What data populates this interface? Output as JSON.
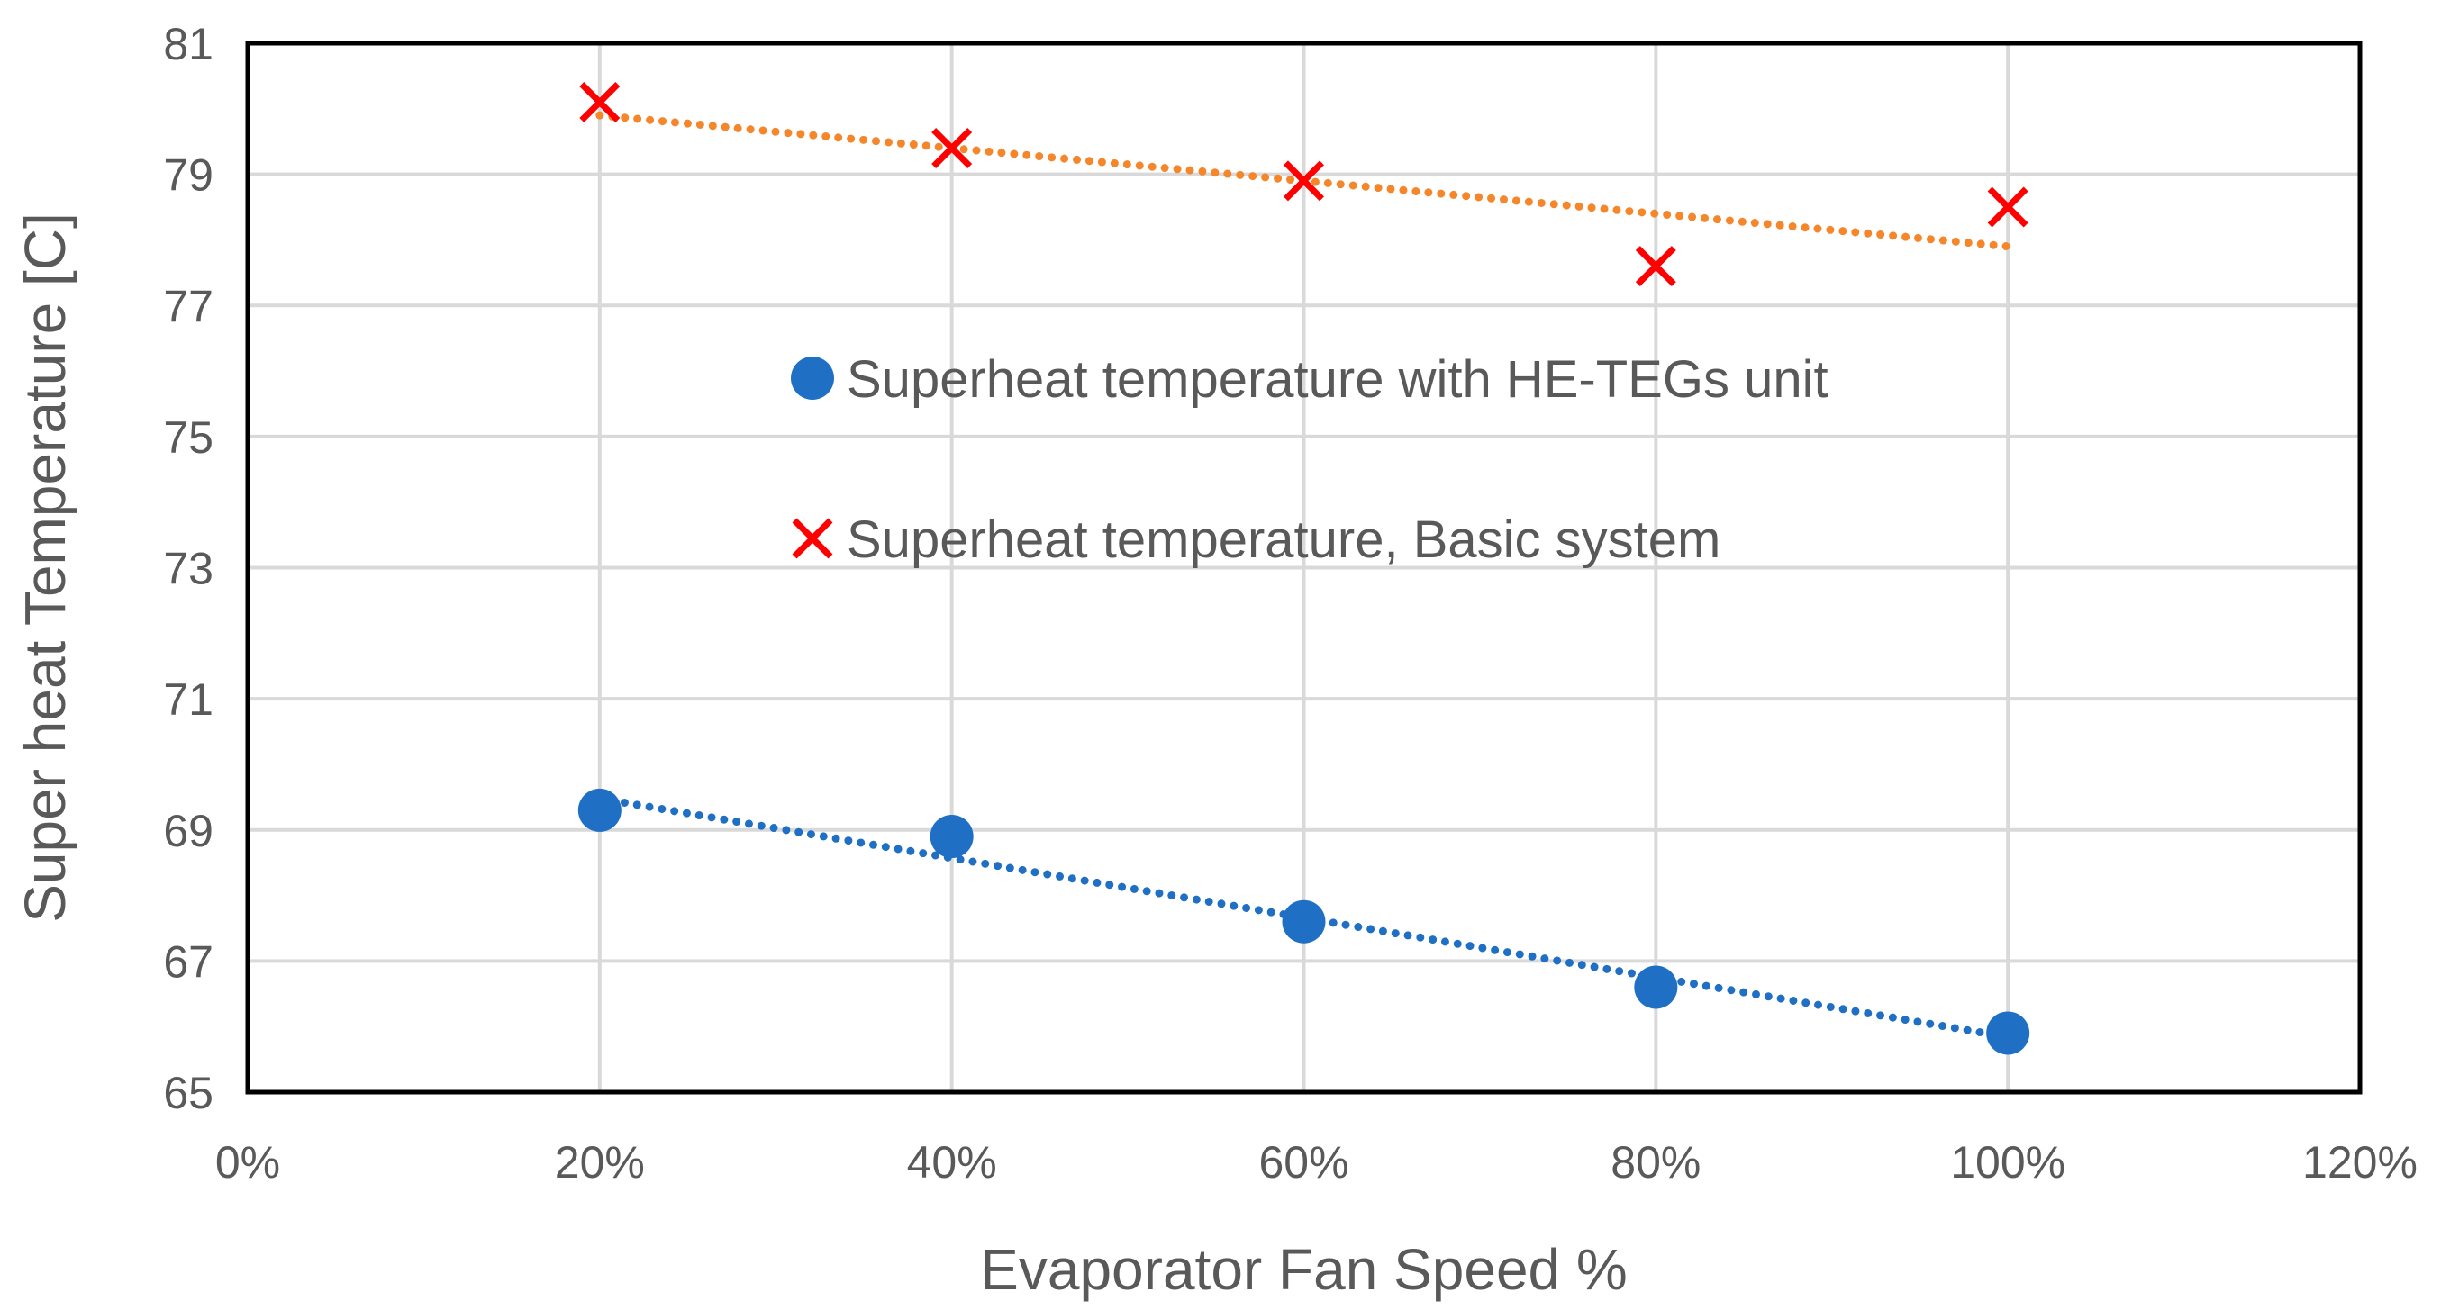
{
  "chart_data": {
    "type": "scatter",
    "title": "",
    "xlabel": "Evaporator Fan Speed %",
    "ylabel": "Super heat Temperature [C]",
    "xlim": [
      0,
      120
    ],
    "ylim": [
      65,
      81
    ],
    "x_ticks": [
      0,
      20,
      40,
      60,
      80,
      100,
      120
    ],
    "x_tick_labels": [
      "0%",
      "20%",
      "40%",
      "60%",
      "80%",
      "100%",
      "120%"
    ],
    "y_ticks": [
      65,
      67,
      69,
      71,
      73,
      75,
      77,
      79,
      81
    ],
    "y_tick_labels": [
      "65",
      "67",
      "69",
      "71",
      "73",
      "75",
      "77",
      "79",
      "81"
    ],
    "grid": true,
    "legend_position": "center",
    "series": [
      {
        "name": "Superheat temperature with HE-TEGs unit",
        "marker": "circle",
        "color": "#1F6FC5",
        "x": [
          20,
          40,
          60,
          80,
          100
        ],
        "y": [
          69.3,
          68.9,
          67.6,
          66.6,
          65.9
        ],
        "trendline": {
          "type": "linear",
          "color": "#1F6FC5",
          "style": "dotted"
        }
      },
      {
        "name": "Superheat temperature, Basic system",
        "marker": "x",
        "color": "#FF0000",
        "x": [
          20,
          40,
          60,
          80,
          100
        ],
        "y": [
          80.1,
          79.4,
          78.9,
          77.6,
          78.5
        ],
        "trendline": {
          "type": "linear",
          "color": "#F5862A",
          "style": "dotted"
        }
      }
    ]
  }
}
